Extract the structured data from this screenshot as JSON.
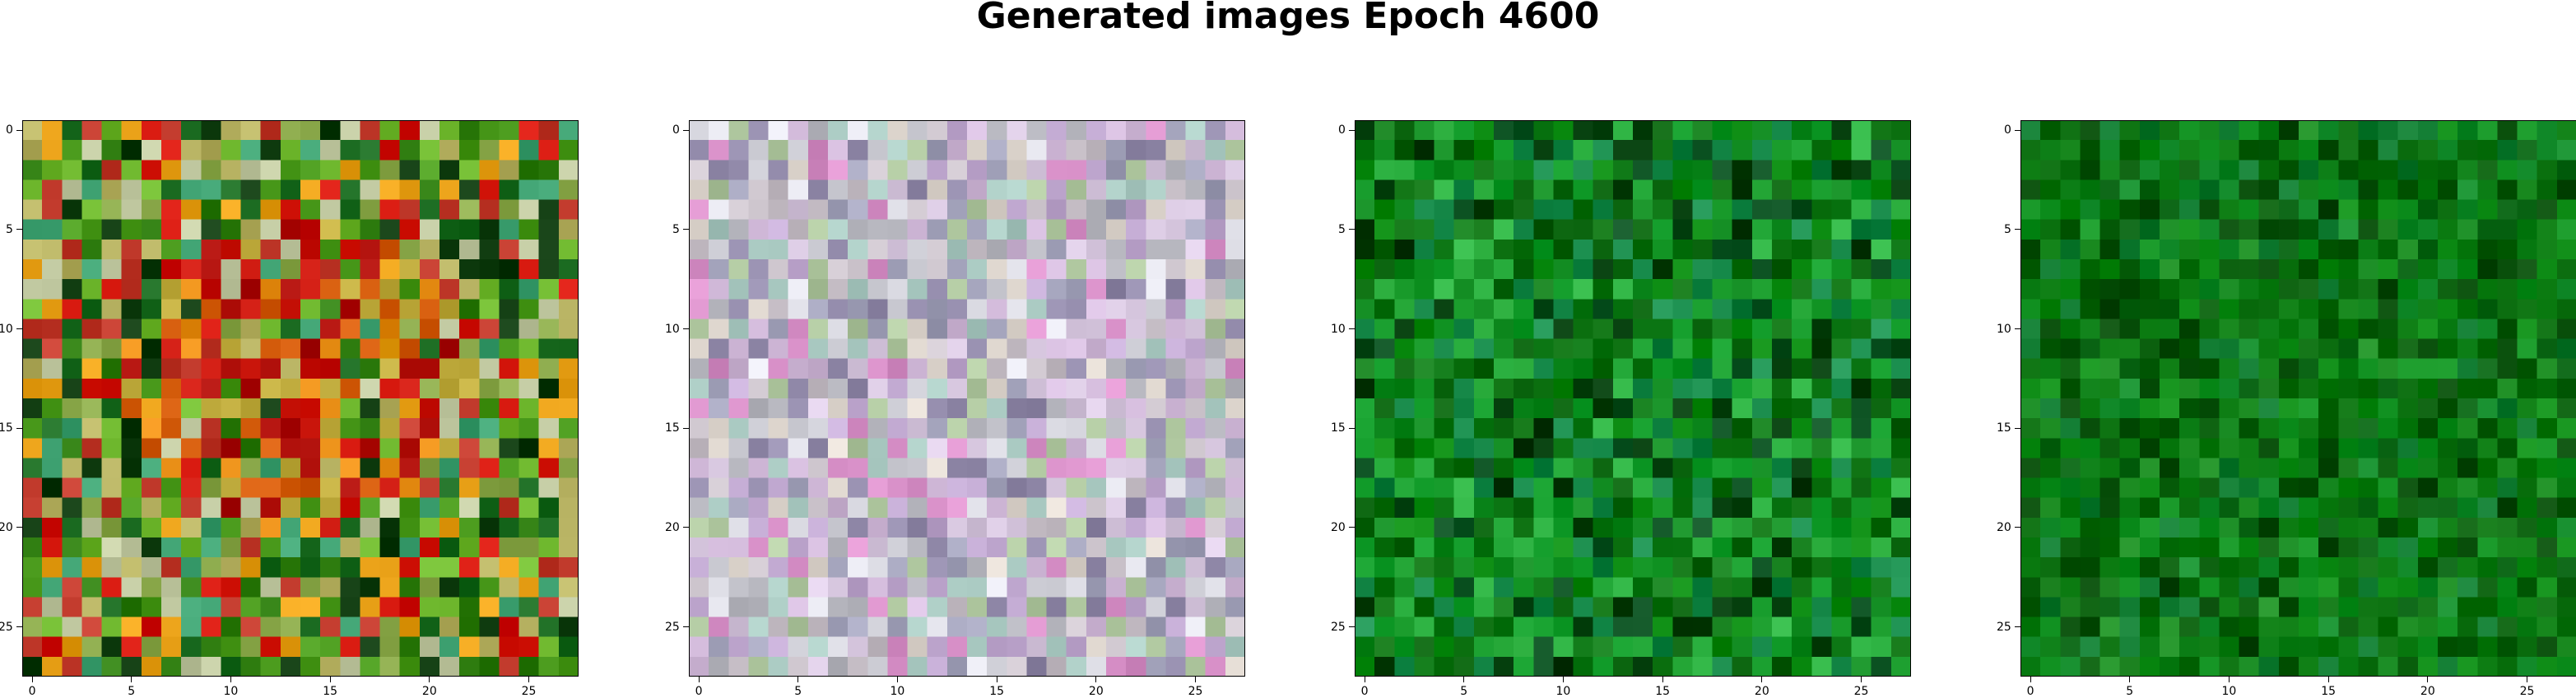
{
  "title": "Generated images Epoch 4600",
  "chart_data": [
    {
      "type": "heatmap",
      "title": "",
      "grid_size": [
        28,
        28
      ],
      "colormap_description": "RGB image: mostly green/olive with a large red patch centered",
      "palette": [
        "#2f7d10",
        "#4a9a1c",
        "#6fb82e",
        "#8aa84a",
        "#c0392b",
        "#d2140a",
        "#e8a017",
        "#b5b060",
        "#c0c8a0",
        "#3da070",
        "#1a6a20",
        "#0e3a0e"
      ],
      "x_ticks": [
        "0",
        "5",
        "10",
        "15",
        "20",
        "25"
      ],
      "y_ticks": [
        "0",
        "5",
        "10",
        "15",
        "20",
        "25"
      ],
      "xlim": [
        -0.5,
        27.5
      ],
      "ylim": [
        27.5,
        -0.5
      ]
    },
    {
      "type": "heatmap",
      "title": "",
      "grid_size": [
        28,
        28
      ],
      "colormap_description": "RGB image: pastel pink/lavender/grey noise",
      "palette": [
        "#c8c0c8",
        "#d8c8e0",
        "#b8b8c0",
        "#e0d8d0",
        "#c0a8d0",
        "#a8c8c0",
        "#d0b8d8",
        "#b0c8a0",
        "#e0e0e8",
        "#9088a8",
        "#d890c8",
        "#a0a0b8"
      ],
      "x_ticks": [
        "0",
        "5",
        "10",
        "15",
        "20",
        "25"
      ],
      "y_ticks": [
        "0",
        "5",
        "10",
        "15",
        "20",
        "25"
      ],
      "xlim": [
        -0.5,
        27.5
      ],
      "ylim": [
        27.5,
        -0.5
      ]
    },
    {
      "type": "heatmap",
      "title": "",
      "grid_size": [
        28,
        28
      ],
      "colormap_description": "RGB image: green noise with dark spots",
      "palette": [
        "#0a8a10",
        "#108a20",
        "#0c7010",
        "#1ea030",
        "#06600a",
        "#2bb040",
        "#0a5020",
        "#109a28",
        "#0e8040",
        "#003a08",
        "#1c9050",
        "#107a18"
      ],
      "x_ticks": [
        "0",
        "5",
        "10",
        "15",
        "20",
        "25"
      ],
      "y_ticks": [
        "0",
        "5",
        "10",
        "15",
        "20",
        "25"
      ],
      "xlim": [
        -0.5,
        27.5
      ],
      "ylim": [
        27.5,
        -0.5
      ]
    },
    {
      "type": "heatmap",
      "title": "",
      "grid_size": [
        28,
        28
      ],
      "colormap_description": "RGB image: darker green noise",
      "palette": [
        "#0a7a10",
        "#086a0c",
        "#0c8a14",
        "#055a08",
        "#109020",
        "#0e8018",
        "#044a06",
        "#128a2a",
        "#0a700e",
        "#0f7a30",
        "#066010",
        "#1a8a20"
      ],
      "x_ticks": [
        "0",
        "5",
        "10",
        "15",
        "20",
        "25"
      ],
      "y_ticks": [
        "0",
        "5",
        "10",
        "15",
        "20",
        "25"
      ],
      "xlim": [
        -0.5,
        27.5
      ],
      "ylim": [
        27.5,
        -0.5
      ]
    }
  ]
}
